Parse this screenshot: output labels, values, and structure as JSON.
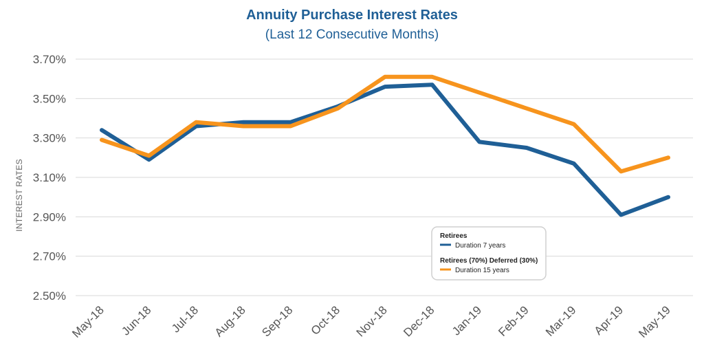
{
  "chart_data": {
    "type": "line",
    "title": "Annuity Purchase Interest Rates",
    "subtitle": "(Last 12 Consecutive Months)",
    "xlabel": "",
    "ylabel": "INTEREST RATES",
    "categories": [
      "May-18",
      "Jun-18",
      "Jul-18",
      "Aug-18",
      "Sep-18",
      "Oct-18",
      "Nov-18",
      "Dec-18",
      "Jan-19",
      "Feb-19",
      "Mar-19",
      "Apr-19",
      "May-19"
    ],
    "ylim": [
      2.5,
      3.7
    ],
    "yticks": [
      2.5,
      2.7,
      2.9,
      3.1,
      3.3,
      3.5,
      3.7
    ],
    "ytick_labels": [
      "2.50%",
      "2.70%",
      "2.90%",
      "3.10%",
      "3.30%",
      "3.50%",
      "3.70%"
    ],
    "grid": true,
    "legend_position": "center-right",
    "series": [
      {
        "group": "Retirees",
        "name": "Duration 7 years",
        "color": "#1f5f96",
        "values": [
          3.34,
          3.19,
          3.36,
          3.38,
          3.38,
          3.46,
          3.56,
          3.57,
          3.28,
          3.25,
          3.17,
          2.91,
          3.0
        ]
      },
      {
        "group": "Retirees (70%) Deferred (30%)",
        "name": "Duration 15 years",
        "color": "#f7941d",
        "values": [
          3.29,
          3.21,
          3.38,
          3.36,
          3.36,
          3.45,
          3.61,
          3.61,
          3.53,
          3.45,
          3.37,
          3.13,
          3.2
        ]
      }
    ]
  }
}
